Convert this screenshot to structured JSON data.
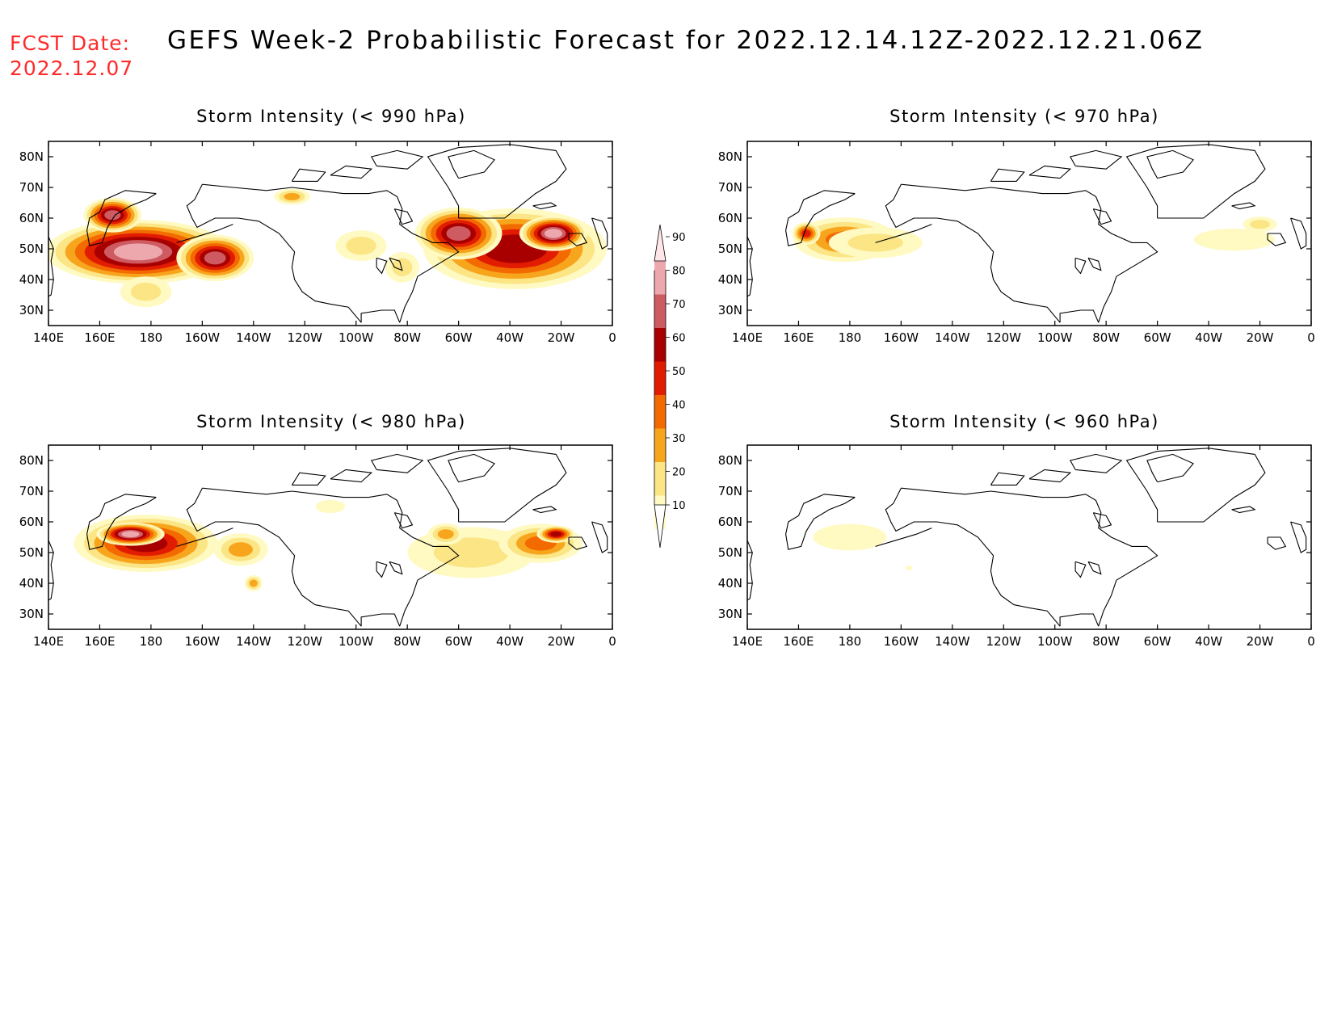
{
  "fcst_label": "FCST Date:",
  "fcst_date": "2022.12.07",
  "main_title": "GEFS Week-2 Probabilistic Forecast for 2022.12.14.12Z-2022.12.21.06Z",
  "colors": {
    "levels": [
      10,
      20,
      30,
      40,
      50,
      60,
      70,
      80,
      90
    ],
    "fills": [
      "#fff9c2",
      "#fbe585",
      "#f8a51e",
      "#f26a00",
      "#e21c00",
      "#a80000",
      "#cf5b62",
      "#eda8ae",
      "#ffe6e8"
    ]
  },
  "map": {
    "lon_range": [
      140,
      360
    ],
    "lat_range": [
      25,
      85
    ],
    "lon_ticks": [
      {
        "lon": 140,
        "label": "140E"
      },
      {
        "lon": 160,
        "label": "160E"
      },
      {
        "lon": 180,
        "label": "180"
      },
      {
        "lon": 200,
        "label": "160W"
      },
      {
        "lon": 220,
        "label": "140W"
      },
      {
        "lon": 240,
        "label": "120W"
      },
      {
        "lon": 260,
        "label": "100W"
      },
      {
        "lon": 280,
        "label": "80W"
      },
      {
        "lon": 300,
        "label": "60W"
      },
      {
        "lon": 320,
        "label": "40W"
      },
      {
        "lon": 340,
        "label": "20W"
      },
      {
        "lon": 360,
        "label": "0"
      }
    ],
    "lat_ticks": [
      {
        "lat": 80,
        "label": "80N"
      },
      {
        "lat": 70,
        "label": "70N"
      },
      {
        "lat": 60,
        "label": "60N"
      },
      {
        "lat": 50,
        "label": "50N"
      },
      {
        "lat": 40,
        "label": "40N"
      },
      {
        "lat": 30,
        "label": "30N"
      }
    ]
  },
  "panels": [
    {
      "id": "p990",
      "title": "Storm Intensity (< 990 hPa)",
      "blobs": [
        {
          "lon": 175,
          "lat": 49,
          "rlon": 38,
          "rlat": 11,
          "p": 80
        },
        {
          "lon": 165,
          "lat": 61,
          "rlon": 12,
          "rlat": 6,
          "p": 70
        },
        {
          "lon": 205,
          "lat": 47,
          "rlon": 16,
          "rlat": 8,
          "p": 70
        },
        {
          "lon": 178,
          "lat": 36,
          "rlon": 12,
          "rlat": 6,
          "p": 20
        },
        {
          "lon": 262,
          "lat": 51,
          "rlon": 12,
          "rlat": 6,
          "p": 20
        },
        {
          "lon": 235,
          "lat": 67,
          "rlon": 8,
          "rlat": 3,
          "p": 30
        },
        {
          "lon": 322,
          "lat": 50,
          "rlon": 38,
          "rlat": 14,
          "p": 65
        },
        {
          "lon": 300,
          "lat": 55,
          "rlon": 18,
          "rlat": 9,
          "p": 70
        },
        {
          "lon": 337,
          "lat": 55,
          "rlon": 14,
          "rlat": 6,
          "p": 80
        },
        {
          "lon": 278,
          "lat": 44,
          "rlon": 8,
          "rlat": 6,
          "p": 20
        }
      ]
    },
    {
      "id": "p970",
      "title": "Storm Intensity (< 970 hPa)",
      "blobs": [
        {
          "lon": 178,
          "lat": 53,
          "rlon": 22,
          "rlat": 8,
          "p": 40
        },
        {
          "lon": 163,
          "lat": 55,
          "rlon": 6,
          "rlat": 4,
          "p": 50
        },
        {
          "lon": 190,
          "lat": 52,
          "rlon": 22,
          "rlat": 6,
          "p": 20
        },
        {
          "lon": 330,
          "lat": 53,
          "rlon": 22,
          "rlat": 5,
          "p": 10
        },
        {
          "lon": 340,
          "lat": 58,
          "rlon": 8,
          "rlat": 3,
          "p": 20
        }
      ]
    },
    {
      "id": "p980",
      "title": "Storm Intensity (< 980 hPa)",
      "blobs": [
        {
          "lon": 178,
          "lat": 53,
          "rlon": 30,
          "rlat": 10,
          "p": 60
        },
        {
          "lon": 172,
          "lat": 56,
          "rlon": 14,
          "rlat": 4,
          "p": 80
        },
        {
          "lon": 215,
          "lat": 51,
          "rlon": 12,
          "rlat": 6,
          "p": 30
        },
        {
          "lon": 220,
          "lat": 40,
          "rlon": 4,
          "rlat": 3,
          "p": 30
        },
        {
          "lon": 305,
          "lat": 50,
          "rlon": 30,
          "rlat": 10,
          "p": 20
        },
        {
          "lon": 332,
          "lat": 53,
          "rlon": 18,
          "rlat": 7,
          "p": 40
        },
        {
          "lon": 338,
          "lat": 56,
          "rlon": 8,
          "rlat": 3,
          "p": 60
        },
        {
          "lon": 295,
          "lat": 56,
          "rlon": 8,
          "rlat": 4,
          "p": 30
        },
        {
          "lon": 250,
          "lat": 65,
          "rlon": 8,
          "rlat": 3,
          "p": 10
        }
      ]
    },
    {
      "id": "p960",
      "title": "Storm Intensity (< 960 hPa)",
      "blobs": [
        {
          "lon": 180,
          "lat": 55,
          "rlon": 20,
          "rlat": 6,
          "p": 10
        },
        {
          "lon": 203,
          "lat": 45,
          "rlon": 2,
          "rlat": 1,
          "p": 10
        }
      ]
    }
  ],
  "colorbar_labels": [
    "10",
    "20",
    "30",
    "40",
    "50",
    "60",
    "70",
    "80",
    "90"
  ]
}
